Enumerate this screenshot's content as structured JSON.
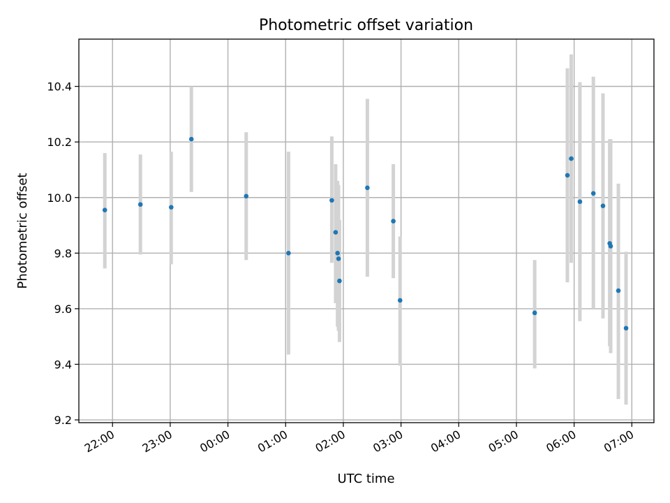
{
  "chart_data": {
    "type": "scatter",
    "title": "Photometric offset variation",
    "xlabel": "UTC time",
    "ylabel": "Photometric offset",
    "grid": true,
    "xlim": [
      "21:25",
      "07:23"
    ],
    "ylim": [
      9.19,
      10.57
    ],
    "x_ticks": [
      "22:00",
      "23:00",
      "00:00",
      "01:00",
      "02:00",
      "03:00",
      "04:00",
      "05:00",
      "06:00",
      "07:00"
    ],
    "y_ticks": [
      "9.2",
      "9.4",
      "9.6",
      "9.8",
      "10.0",
      "10.2",
      "10.4"
    ],
    "point_color": "#1f77b4",
    "errorbar_color": "#d3d3d3",
    "points": [
      {
        "x": "21:52",
        "y": 9.955,
        "ymin": 9.745,
        "ymax": 10.16
      },
      {
        "x": "22:29",
        "y": 9.975,
        "ymin": 9.795,
        "ymax": 10.155
      },
      {
        "x": "23:01",
        "y": 9.965,
        "ymin": 9.76,
        "ymax": 10.165
      },
      {
        "x": "23:22",
        "y": 10.21,
        "ymin": 10.02,
        "ymax": 10.4
      },
      {
        "x": "00:19",
        "y": 10.005,
        "ymin": 9.775,
        "ymax": 10.235
      },
      {
        "x": "01:03",
        "y": 9.8,
        "ymin": 9.435,
        "ymax": 10.165
      },
      {
        "x": "01:48",
        "y": 9.99,
        "ymin": 9.765,
        "ymax": 10.22
      },
      {
        "x": "01:52",
        "y": 9.875,
        "ymin": 9.62,
        "ymax": 10.12
      },
      {
        "x": "01:54",
        "y": 9.8,
        "ymin": 9.535,
        "ymax": 10.06
      },
      {
        "x": "01:55",
        "y": 9.78,
        "ymin": 9.52,
        "ymax": 10.045
      },
      {
        "x": "01:56",
        "y": 9.7,
        "ymin": 9.48,
        "ymax": 9.92
      },
      {
        "x": "02:25",
        "y": 10.035,
        "ymin": 9.715,
        "ymax": 10.355
      },
      {
        "x": "02:52",
        "y": 9.915,
        "ymin": 9.71,
        "ymax": 10.12
      },
      {
        "x": "02:59",
        "y": 9.63,
        "ymin": 9.395,
        "ymax": 9.86
      },
      {
        "x": "05:19",
        "y": 9.585,
        "ymin": 9.385,
        "ymax": 9.775
      },
      {
        "x": "05:53",
        "y": 10.08,
        "ymin": 9.695,
        "ymax": 10.465
      },
      {
        "x": "05:57",
        "y": 10.14,
        "ymin": 9.765,
        "ymax": 10.515
      },
      {
        "x": "06:06",
        "y": 9.985,
        "ymin": 9.555,
        "ymax": 10.415
      },
      {
        "x": "06:20",
        "y": 10.015,
        "ymin": 9.6,
        "ymax": 10.435
      },
      {
        "x": "06:30",
        "y": 9.97,
        "ymin": 9.565,
        "ymax": 10.375
      },
      {
        "x": "06:37",
        "y": 9.835,
        "ymin": 9.465,
        "ymax": 10.21
      },
      {
        "x": "06:38",
        "y": 9.825,
        "ymin": 9.44,
        "ymax": 10.21
      },
      {
        "x": "06:46",
        "y": 9.665,
        "ymin": 9.275,
        "ymax": 10.05
      },
      {
        "x": "06:54",
        "y": 9.53,
        "ymin": 9.255,
        "ymax": 9.805
      }
    ]
  }
}
